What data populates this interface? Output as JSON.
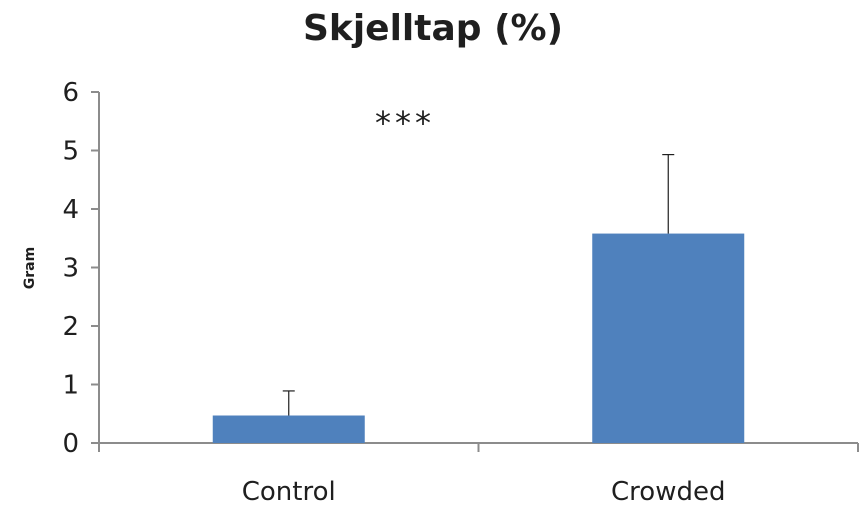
{
  "chart_data": {
    "type": "bar",
    "title": "Skjelltap (%)",
    "xlabel": "",
    "ylabel": "Gram",
    "ylim": [
      0,
      6
    ],
    "yticks": [
      "0",
      "1",
      "2",
      "3",
      "4",
      "5",
      "6"
    ],
    "categories": [
      "Control",
      "Crowded"
    ],
    "values": [
      0.47,
      3.58
    ],
    "error_plus": [
      0.42,
      1.35
    ],
    "annotation": "***",
    "grid": false,
    "bar_color": "#4f81bd"
  }
}
